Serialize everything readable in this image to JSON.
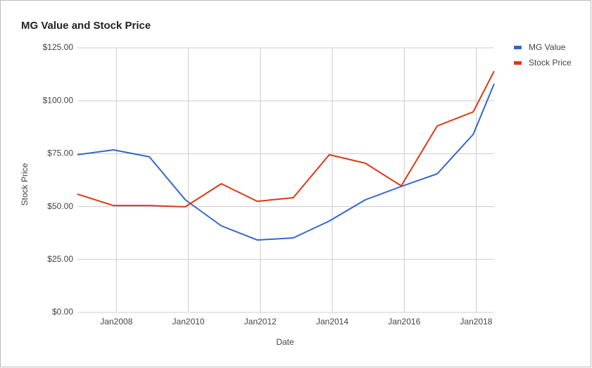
{
  "chart_data": {
    "type": "line",
    "title": "MG Value and Stock Price",
    "x_label": "Date",
    "y_label": "Stock Price",
    "x": [
      "2006-12",
      "2007-12",
      "2008-12",
      "2009-12",
      "2010-12",
      "2011-12",
      "2012-12",
      "2013-12",
      "2014-12",
      "2015-12",
      "2016-12",
      "2017-12",
      "2018-07"
    ],
    "series": [
      {
        "name": "MG Value",
        "color": "#3366cc",
        "values": [
          74.5,
          76.8,
          73.5,
          53.2,
          40.9,
          34.2,
          35.2,
          43.2,
          53.2,
          59.5,
          65.5,
          84.1,
          108
        ]
      },
      {
        "name": "Stock Price",
        "color": "#dc3912",
        "values": [
          55.9,
          50.5,
          50.5,
          49.9,
          60.8,
          52.5,
          54.2,
          74.5,
          70.5,
          59.8,
          88.1,
          94.7,
          114
        ]
      }
    ],
    "xlim": [
      "2006-12",
      "2018-07"
    ],
    "xticks": [
      {
        "value": "2008-01",
        "label": "Jan2008"
      },
      {
        "value": "2010-01",
        "label": "Jan2010"
      },
      {
        "value": "2012-01",
        "label": "Jan2012"
      },
      {
        "value": "2014-01",
        "label": "Jan2014"
      },
      {
        "value": "2016-01",
        "label": "Jan2016"
      },
      {
        "value": "2018-01",
        "label": "Jan2018"
      }
    ],
    "ylim": [
      0,
      125
    ],
    "yticks": [
      {
        "value": 0,
        "label": "$0.00"
      },
      {
        "value": 25,
        "label": "$25.00"
      },
      {
        "value": 50,
        "label": "$50.00"
      },
      {
        "value": 75,
        "label": "$75.00"
      },
      {
        "value": 100,
        "label": "$100.00"
      },
      {
        "value": 125,
        "label": "$125.00"
      }
    ],
    "grid": true,
    "legend": "right"
  }
}
